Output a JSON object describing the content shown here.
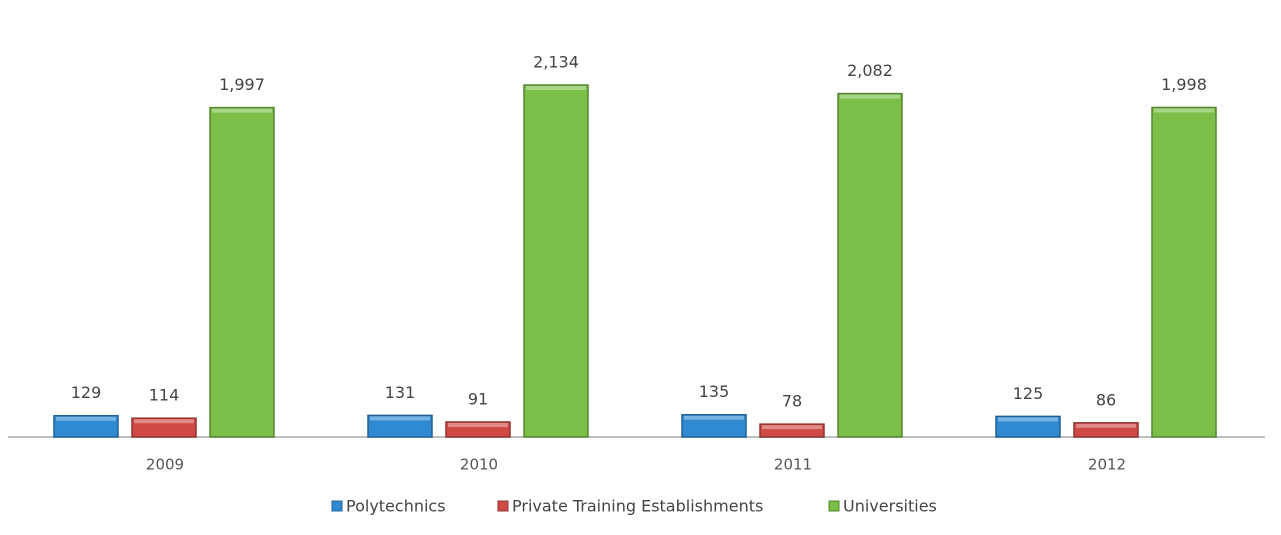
{
  "chart_data": {
    "type": "bar",
    "categories": [
      "2009",
      "2010",
      "2011",
      "2012"
    ],
    "series": [
      {
        "name": "Polytechnics",
        "color": "#2f8ad4",
        "values": [
          129,
          131,
          135,
          125
        ]
      },
      {
        "name": "Private Training Establishments",
        "color": "#cf4a45",
        "values": [
          114,
          91,
          78,
          86
        ]
      },
      {
        "name": "Universities",
        "color": "#7bbf48",
        "values": [
          1997,
          2134,
          2082,
          1998
        ],
        "value_labels": [
          "1,997",
          "2,134",
          "2,082",
          "1,998"
        ]
      }
    ],
    "legend": "bottom"
  }
}
